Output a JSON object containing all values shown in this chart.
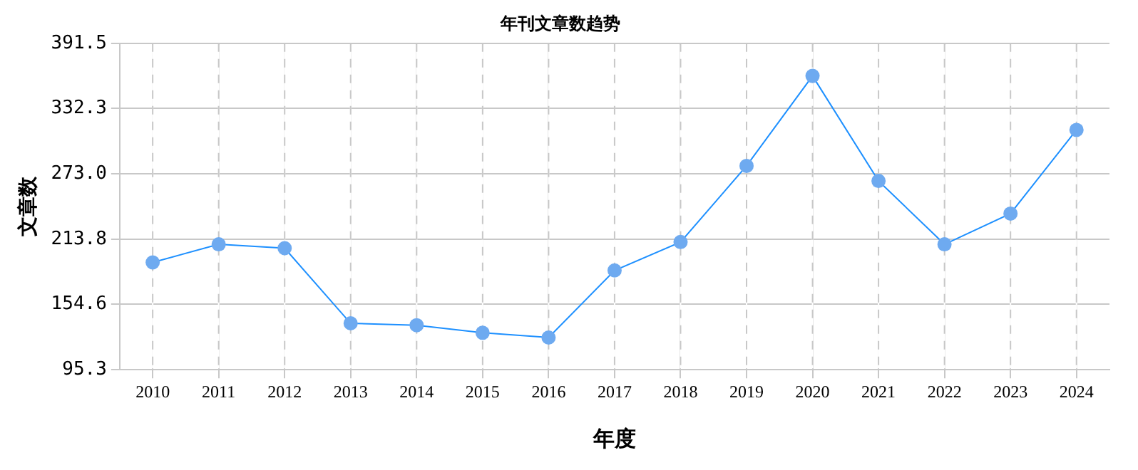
{
  "chart_data": {
    "type": "line",
    "title": "年刊文章数趋势",
    "xlabel": "年度",
    "ylabel": "文章数",
    "categories": [
      "2010",
      "2011",
      "2012",
      "2013",
      "2014",
      "2015",
      "2016",
      "2017",
      "2018",
      "2019",
      "2020",
      "2021",
      "2022",
      "2023",
      "2024"
    ],
    "series": [
      {
        "color": "#1e90ff",
        "values": [
          192.7,
          209.1,
          205.6,
          137.4,
          135.7,
          128.8,
          124.5,
          185.4,
          211.2,
          280.3,
          361.9,
          266.6,
          209.1,
          237,
          312.9
        ]
      }
    ],
    "ylim": [
      95.3,
      391.5
    ],
    "yticks": [
      {
        "value": 95.3,
        "label": "95.3"
      },
      {
        "value": 154.6,
        "label": "154.6"
      },
      {
        "value": 213.8,
        "label": "213.8"
      },
      {
        "value": 273.0,
        "label": "273.0"
      },
      {
        "value": 332.3,
        "label": "332.3"
      },
      {
        "value": 391.5,
        "label": "391.5"
      }
    ],
    "grid": true,
    "marker": "circle",
    "legend": false
  }
}
